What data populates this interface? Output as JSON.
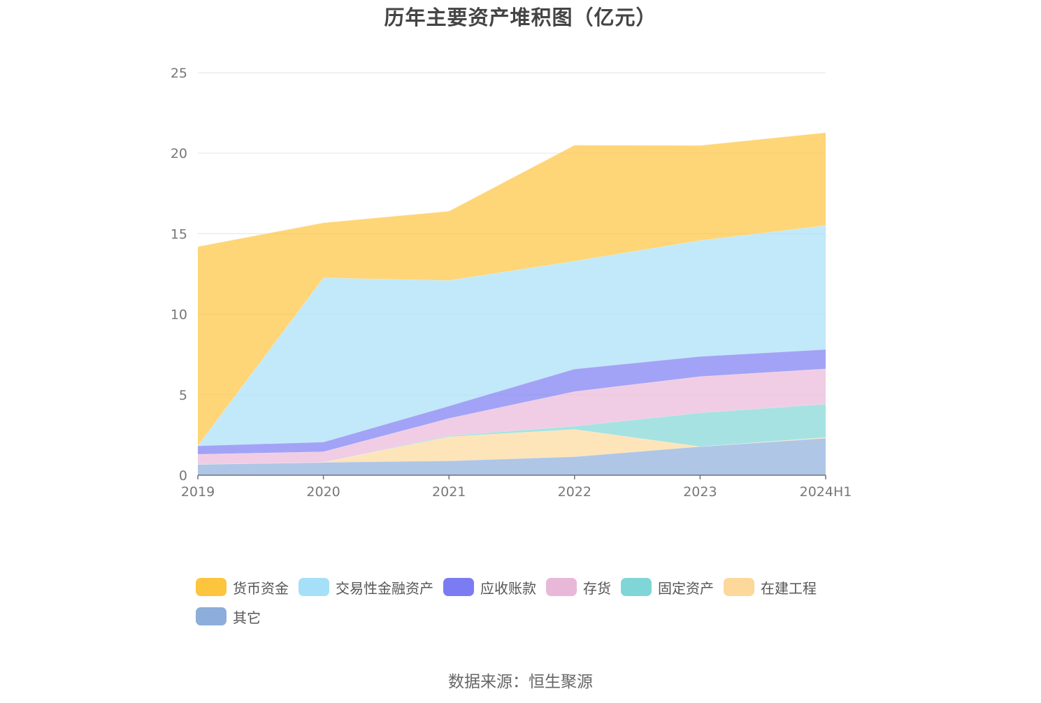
{
  "chart_data": {
    "type": "area",
    "stacked": true,
    "title": "历年主要资产堆积图（亿元）",
    "x": [
      "2019",
      "2020",
      "2021",
      "2022",
      "2023",
      "2024H1"
    ],
    "ylim": [
      0,
      25
    ],
    "yticks": [
      0,
      5,
      10,
      15,
      20,
      25
    ],
    "grid": true,
    "legend_position": "bottom",
    "series": [
      {
        "name": "其它",
        "color": "#8daedb",
        "values": [
          0.68,
          0.8,
          0.89,
          1.15,
          1.78,
          2.3
        ]
      },
      {
        "name": "在建工程",
        "color": "#fdd89b",
        "values": [
          0.0,
          0.0,
          1.5,
          1.7,
          0.0,
          0.05
        ]
      },
      {
        "name": "固定资产",
        "color": "#80d6d6",
        "values": [
          0.0,
          0.0,
          0.06,
          0.2,
          2.1,
          2.07
        ]
      },
      {
        "name": "存货",
        "color": "#e9b8d8",
        "values": [
          0.62,
          0.66,
          1.08,
          2.15,
          2.25,
          2.19
        ]
      },
      {
        "name": "应收账款",
        "color": "#7b7cf2",
        "values": [
          0.53,
          0.6,
          0.77,
          1.4,
          1.25,
          1.2
        ]
      },
      {
        "name": "交易性金融资产",
        "color": "#a6dff8",
        "values": [
          0.0,
          10.2,
          7.8,
          6.7,
          7.2,
          7.7
        ]
      },
      {
        "name": "货币资金",
        "color": "#fdc53e",
        "values": [
          12.37,
          3.42,
          4.3,
          7.2,
          5.9,
          5.77
        ]
      }
    ],
    "legend_order": [
      "货币资金",
      "交易性金融资产",
      "应收账款",
      "存货",
      "固定资产",
      "在建工程",
      "其它"
    ]
  },
  "source": "数据来源：恒生聚源",
  "colors": {
    "grid": "#e6e8ef",
    "axis": "#6e7079",
    "tick_text": "#777777"
  }
}
